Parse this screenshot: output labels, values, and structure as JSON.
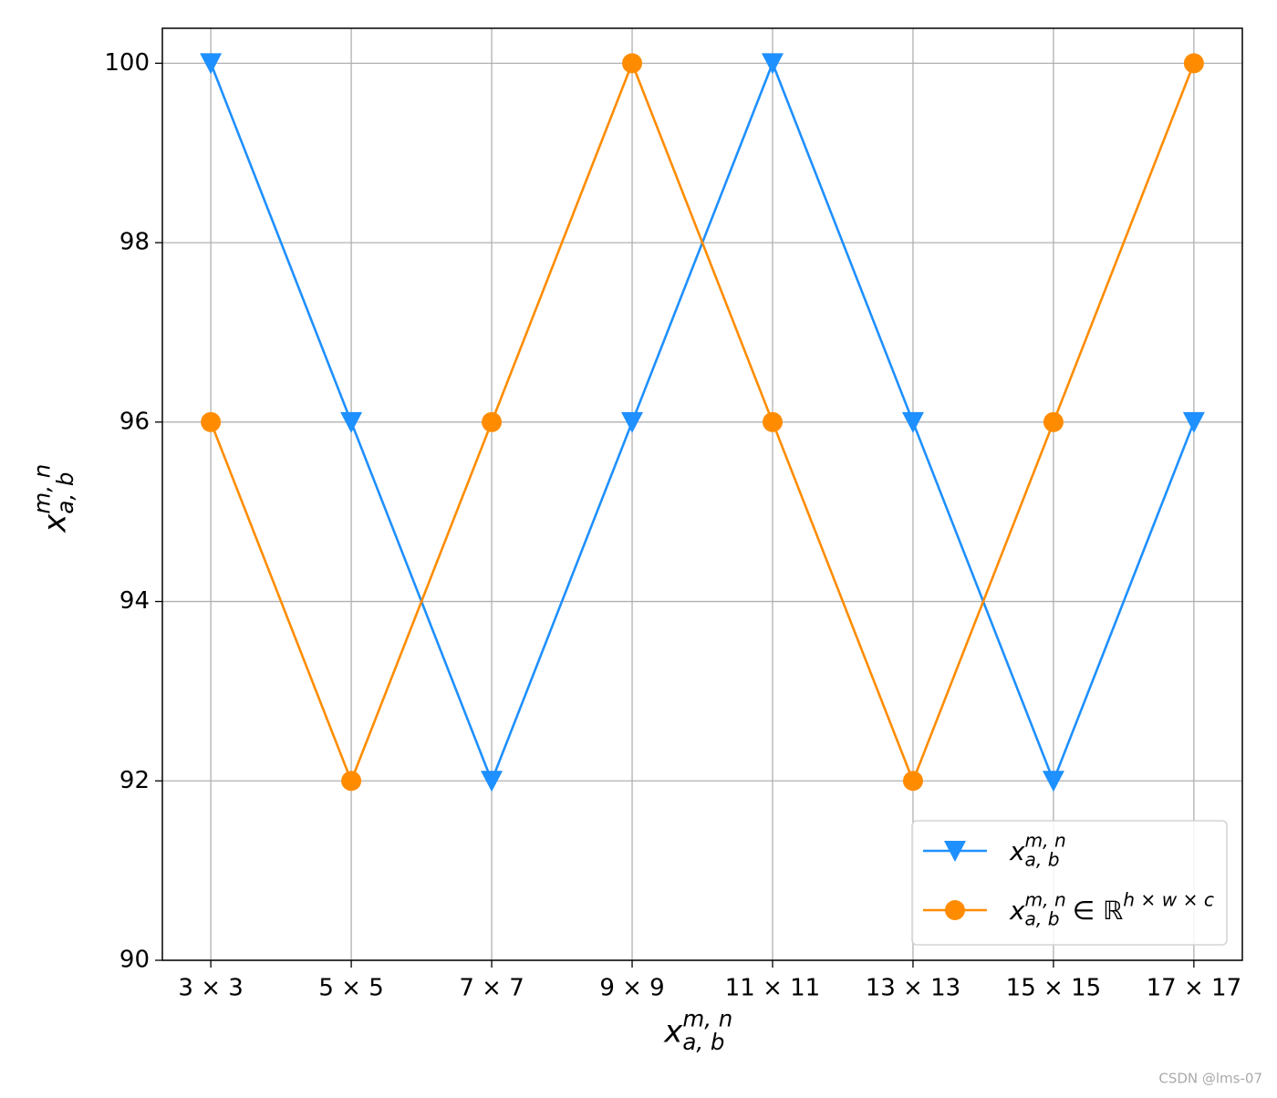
{
  "chart_data": {
    "type": "line",
    "categories": [
      "3 × 3",
      "5 × 5",
      "7 × 7",
      "9 × 9",
      "11 × 11",
      "13 × 13",
      "15 × 15",
      "17 × 17"
    ],
    "series": [
      {
        "name": {
          "base": "x",
          "sup": "m, n",
          "sub": "a, b"
        },
        "color": "#1e90ff",
        "marker": "triangle-down",
        "values": [
          100,
          96,
          92,
          96,
          100,
          96,
          92,
          96
        ]
      },
      {
        "name": {
          "base": "x",
          "sup": "m, n",
          "sub": "a, b",
          "tail": "∈ ℝ",
          "tail_sup": "h × w × c"
        },
        "color": "#ff8c00",
        "marker": "circle",
        "values": [
          96,
          92,
          96,
          100,
          96,
          92,
          96,
          100
        ]
      }
    ],
    "x_label": {
      "base": "x",
      "sup": "m, n",
      "sub": "a, b"
    },
    "y_label": {
      "base": "x",
      "sup": "m, n",
      "sub": "a, b"
    },
    "ylim": [
      90,
      100.39
    ],
    "yticks": [
      90,
      92,
      94,
      96,
      98,
      100
    ],
    "grid": true,
    "legend": "lower right",
    "watermark": "CSDN @lms-07"
  }
}
